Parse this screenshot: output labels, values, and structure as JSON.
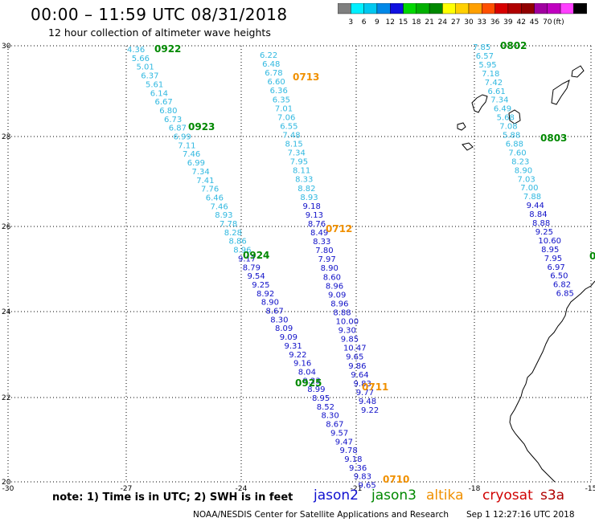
{
  "header": {
    "title": "00:00 – 11:59 UTC 08/31/2018",
    "subtitle": "12 hour collection of altimeter wave heights"
  },
  "color_scale": {
    "unit": "(ft)",
    "labels": [
      "3",
      "6",
      "9",
      "12",
      "15",
      "18",
      "21",
      "24",
      "27",
      "30",
      "33",
      "36",
      "39",
      "42",
      "45",
      "70"
    ],
    "colors": [
      "#7f7f7f",
      "#00f0ff",
      "#00c8f0",
      "#0088e8",
      "#1010e0",
      "#00d800",
      "#00b000",
      "#008800",
      "#ffff00",
      "#ffd000",
      "#ffa000",
      "#ff5000",
      "#d80000",
      "#b00000",
      "#900000",
      "#a000a0",
      "#c000c0",
      "#ff40ff",
      "#000000"
    ]
  },
  "map": {
    "lon_ticks": [
      "-30",
      "-27",
      "-24",
      "-21",
      "-18",
      "-15"
    ],
    "lat_ticks": [
      "30",
      "28",
      "26",
      "24",
      "22",
      "20"
    ],
    "track_colors": {
      "light": "#30b8e0",
      "dark": "#1010c8",
      "jason3": "#008800",
      "altika": "#f09000"
    },
    "tracks": [
      {
        "start": [
          158,
          58
        ],
        "dx": 5.75,
        "dy": 10.85,
        "values": [
          "4.36",
          "5.66",
          "5.01",
          "6.37",
          "5.61",
          "6.14",
          "6.67",
          "6.80",
          "6.73",
          "6.87",
          "6.99",
          "7.11",
          "7.46",
          "6.99",
          "7.34",
          "7.41",
          "7.76",
          "6.46",
          "7.46",
          "8.93",
          "7.78",
          "8.28",
          "8.86",
          "8.96",
          "9.17",
          "8.79",
          "9.54",
          "9.25",
          "8.92",
          "8.90",
          "8.67",
          "8.30",
          "8.09",
          "9.09",
          "9.31",
          "9.22",
          "9.16",
          "8.04",
          "9.23",
          "8.99",
          "8.95",
          "8.52",
          "8.30",
          "8.67",
          "9.57",
          "9.47",
          "9.78",
          "9.18",
          "9.36",
          "9.83",
          "9.65"
        ],
        "dark_from": 24
      },
      {
        "start": [
          323,
          65
        ],
        "dx": 3.15,
        "dy": 11.05,
        "values": [
          "6.22",
          "6.48",
          "6.78",
          "6.60",
          "6.36",
          "6.35",
          "7.01",
          "7.06",
          "6.55",
          "7.48",
          "8.15",
          "7.34",
          "7.95",
          "8.11",
          "8.33",
          "8.82",
          "8.93",
          "9.18",
          "9.13",
          "8.76",
          "8.49",
          "8.33",
          "7.80",
          "7.97",
          "8.90",
          "8.60",
          "8.96",
          "9.09",
          "8.96",
          "8.88",
          "10.00",
          "9.30",
          "9.85",
          "10.47",
          "9.65",
          "9.86",
          "9.64",
          "9.83",
          "9.77",
          "9.48",
          "9.22"
        ],
        "dark_from": 17
      },
      {
        "start": [
          588,
          55
        ],
        "dx": 3.7,
        "dy": 10.95,
        "values": [
          "7.85",
          "6.57",
          "5.95",
          "7.18",
          "7.42",
          "6.61",
          "7.34",
          "6.49",
          "5.68",
          "7.08",
          "5.88",
          "6.88",
          "7.60",
          "8.23",
          "8.90",
          "7.03",
          "7.00",
          "7.88",
          "9.44",
          "8.84",
          "8.88",
          "9.25",
          "10.60",
          "8.95",
          "7.95",
          "6.97",
          "6.50",
          "6.82",
          "6.85"
        ],
        "dark_from": 18
      }
    ],
    "pass_labels": [
      {
        "text": "0922",
        "sat": "jason3"
      },
      {
        "text": "0923",
        "sat": "jason3"
      },
      {
        "text": "0924",
        "sat": "jason3"
      },
      {
        "text": "0925",
        "sat": "jason3"
      },
      {
        "text": "0713",
        "sat": "altika"
      },
      {
        "text": "0712",
        "sat": "altika"
      },
      {
        "text": "0711",
        "sat": "altika"
      },
      {
        "text": "0710",
        "sat": "altika"
      },
      {
        "text": "0802",
        "sat": "jason3"
      },
      {
        "text": "0803",
        "sat": "jason3"
      },
      {
        "text": "0",
        "sat": "jason3"
      }
    ]
  },
  "footer": {
    "note": "note:  1) Time is in UTC;  2) SWH is in feet",
    "satellites": [
      {
        "name": "jason2",
        "color": "#1010d0"
      },
      {
        "name": "jason3",
        "color": "#008800"
      },
      {
        "name": "altika",
        "color": "#f09000"
      },
      {
        "name": "cryosat",
        "color": "#d00000"
      },
      {
        "name": "s3a",
        "color": "#b00000"
      }
    ],
    "credit": "NOAA/NESDIS Center for Satellite Applications and Research",
    "generated": "Sep  1 12:27:16 UTC 2018"
  }
}
